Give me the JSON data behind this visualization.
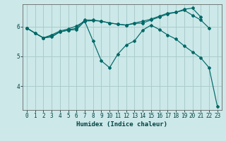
{
  "xlabel": "Humidex (Indice chaleur)",
  "background_color": "#cce8e8",
  "grid_color": "#aacccc",
  "line_color": "#006868",
  "xlim": [
    -0.5,
    23.5
  ],
  "ylim": [
    3.2,
    6.75
  ],
  "yticks": [
    4,
    5,
    6
  ],
  "xticks": [
    0,
    1,
    2,
    3,
    4,
    5,
    6,
    7,
    8,
    9,
    10,
    11,
    12,
    13,
    14,
    15,
    16,
    17,
    18,
    19,
    20,
    21,
    22,
    23
  ],
  "lines": [
    {
      "x": [
        0,
        1,
        2,
        3,
        4,
        5,
        6,
        7,
        8,
        9,
        10,
        11,
        12,
        13,
        14,
        15,
        16,
        17,
        18,
        19,
        20,
        21,
        22,
        23
      ],
      "y": [
        5.95,
        5.78,
        5.62,
        5.65,
        5.82,
        5.88,
        5.9,
        6.18,
        5.52,
        4.85,
        4.62,
        5.08,
        5.38,
        5.52,
        5.88,
        6.05,
        5.9,
        5.72,
        5.58,
        5.35,
        5.15,
        4.95,
        4.62,
        3.32
      ]
    },
    {
      "x": [
        0,
        1,
        2,
        3,
        4,
        5,
        6,
        7,
        8,
        9,
        10,
        11,
        12,
        13,
        14,
        15,
        16,
        17,
        18,
        19,
        20,
        21,
        22
      ],
      "y": [
        5.95,
        5.78,
        5.62,
        5.72,
        5.85,
        5.92,
        6.02,
        6.18,
        6.2,
        6.18,
        6.12,
        6.08,
        6.05,
        6.1,
        6.12,
        6.22,
        6.32,
        6.42,
        6.48,
        6.55,
        6.38,
        6.22,
        5.95
      ]
    },
    {
      "x": [
        0,
        2,
        3,
        4,
        5,
        6,
        7,
        8,
        9,
        10,
        11,
        12,
        13,
        14,
        15,
        16,
        17,
        18,
        19,
        20,
        21
      ],
      "y": [
        5.95,
        5.62,
        5.68,
        5.82,
        5.88,
        5.95,
        6.22,
        6.22,
        6.18,
        6.12,
        6.08,
        6.05,
        6.12,
        6.18,
        6.25,
        6.35,
        6.45,
        6.48,
        6.58,
        6.62,
        6.32
      ]
    }
  ]
}
